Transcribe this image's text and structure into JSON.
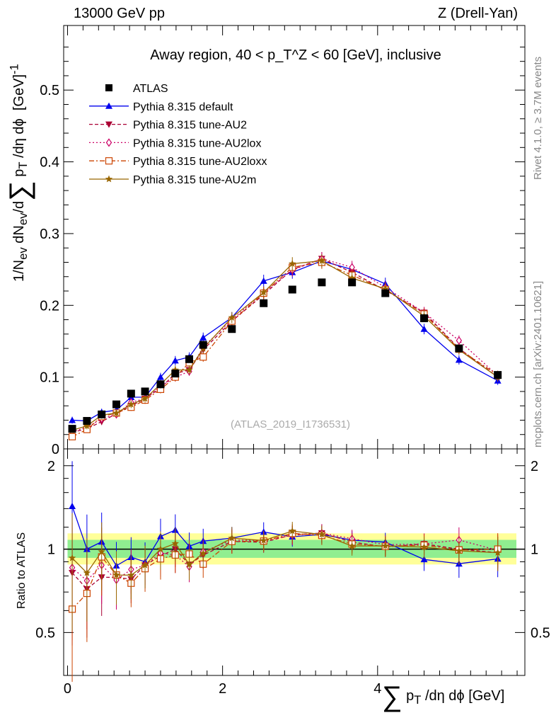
{
  "header": {
    "energy": "13000 GeV pp",
    "process": "Z (Drell-Yan)"
  },
  "side_labels": {
    "rivet": "Rivet 4.1.0, ≥ 3.7M events",
    "mcplots": "mcplots.cern.ch [arXiv:2401.10621]"
  },
  "chart_data": {
    "type": "scatter",
    "title": "Away region, 40 < p_T^Z < 60 [GeV], inclusive",
    "analysis_id": "(ATLAS_2019_I1736531)",
    "xlabel": "∑ p_T /dη dϕ [GeV]",
    "ylabel": "1/N_ev dN_ev/d∑ p_T /dη dϕ [GeV]^-1",
    "ratio_ylabel": "Ratio to ATLAS",
    "xlim": [
      -0.05,
      5.9
    ],
    "ylim": [
      0,
      0.59
    ],
    "ratio_ylim": [
      0.35,
      2.3
    ],
    "x_ticks": [
      "0",
      "2",
      "4"
    ],
    "y_ticks": [
      "0",
      "0.1",
      "0.2",
      "0.3",
      "0.4",
      "0.5"
    ],
    "ratio_ticks": [
      "0.5",
      "1",
      "2"
    ],
    "x": [
      0.06,
      0.25,
      0.44,
      0.63,
      0.82,
      1.0,
      1.2,
      1.39,
      1.57,
      1.75,
      2.12,
      2.53,
      2.9,
      3.28,
      3.67,
      4.1,
      4.6,
      5.05,
      5.55
    ],
    "data": {
      "name": "ATLAS",
      "values": [
        0.028,
        0.039,
        0.048,
        0.062,
        0.077,
        0.08,
        0.09,
        0.105,
        0.125,
        0.145,
        0.167,
        0.203,
        0.222,
        0.232,
        0.232,
        0.217,
        0.182,
        0.14,
        0.103
      ]
    },
    "series": [
      {
        "name": "Pythia 8.315 default",
        "color": "#0000ee",
        "marker": "triangle-up",
        "dash": "solid",
        "values": [
          0.04,
          0.039,
          0.051,
          0.054,
          0.072,
          0.072,
          0.1,
          0.123,
          0.128,
          0.155,
          0.183,
          0.234,
          0.246,
          0.262,
          0.25,
          0.23,
          0.167,
          0.124,
          0.095
        ]
      },
      {
        "name": "Pythia 8.315 tune-AU2",
        "color": "#aa0033",
        "marker": "triangle-down",
        "dash": "dashed",
        "values": [
          0.023,
          0.028,
          0.038,
          0.049,
          0.06,
          0.07,
          0.085,
          0.105,
          0.11,
          0.138,
          0.178,
          0.215,
          0.25,
          0.265,
          0.246,
          0.221,
          0.19,
          0.14,
          0.1
        ]
      },
      {
        "name": "Pythia 8.315 tune-AU2lox",
        "color": "#cc0066",
        "marker": "diamond",
        "dash": "dotted",
        "values": [
          0.024,
          0.03,
          0.042,
          0.048,
          0.065,
          0.07,
          0.087,
          0.1,
          0.108,
          0.142,
          0.18,
          0.218,
          0.249,
          0.265,
          0.253,
          0.225,
          0.19,
          0.151,
          0.102
        ]
      },
      {
        "name": "Pythia 8.315 tune-AU2loxx",
        "color": "#cc4400",
        "marker": "square-open",
        "dash": "dashdot",
        "values": [
          0.017,
          0.027,
          0.045,
          0.05,
          0.058,
          0.068,
          0.083,
          0.1,
          0.12,
          0.128,
          0.178,
          0.217,
          0.253,
          0.26,
          0.242,
          0.222,
          0.188,
          0.139,
          0.103
        ]
      },
      {
        "name": "Pythia 8.315 tune-AU2m",
        "color": "#996600",
        "marker": "star",
        "dash": "solid",
        "values": [
          0.026,
          0.032,
          0.047,
          0.05,
          0.062,
          0.07,
          0.09,
          0.11,
          0.11,
          0.14,
          0.183,
          0.218,
          0.258,
          0.262,
          0.238,
          0.223,
          0.185,
          0.138,
          0.1
        ]
      }
    ]
  }
}
